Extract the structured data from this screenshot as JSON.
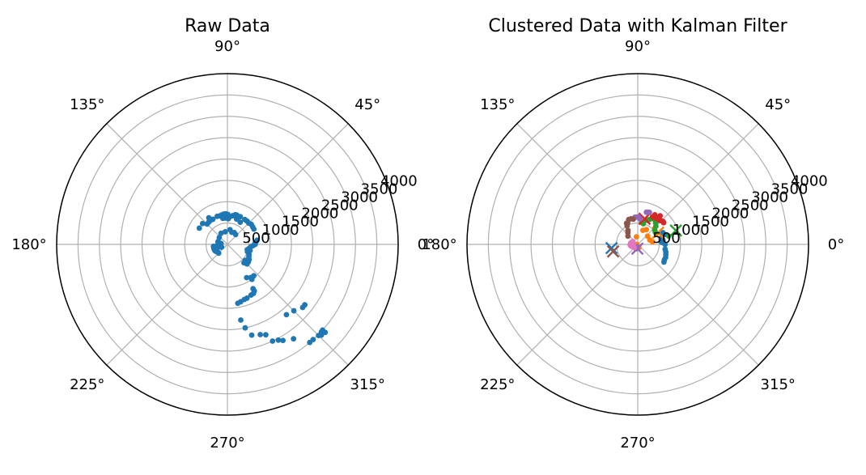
{
  "chart_data": [
    {
      "type": "scatter",
      "projection": "polar",
      "title": "Raw Data",
      "rlim": [
        0,
        4000
      ],
      "r_ticks": [
        500,
        1000,
        1500,
        2000,
        2500,
        3000,
        3500,
        4000
      ],
      "r_tick_labels": [
        "500",
        "1000",
        "1500",
        "2000",
        "2500",
        "3000",
        "3500",
        "4000"
      ],
      "angle_ticks_deg": [
        0,
        45,
        90,
        135,
        180,
        225,
        270,
        315
      ],
      "angle_tick_labels": [
        "0°",
        "45°",
        "90°",
        "135°",
        "180°",
        "225°",
        "270°",
        "315°"
      ],
      "grid": true,
      "series": [
        {
          "color": "#1f77b4",
          "points": [
            [
              95,
              620
            ],
            [
              100,
              620
            ],
            [
              100,
              645
            ],
            [
              85,
              650
            ],
            [
              88,
              600
            ],
            [
              89,
              700
            ],
            [
              91,
              705
            ],
            [
              93,
              717
            ],
            [
              95,
              715
            ],
            [
              98,
              712
            ],
            [
              102,
              700
            ],
            [
              105,
              690
            ],
            [
              110,
              700
            ],
            [
              120,
              680
            ],
            [
              125,
              690
            ],
            [
              130,
              680
            ],
            [
              135,
              674
            ],
            [
              125,
              760
            ],
            [
              140,
              760
            ],
            [
              150,
              760
            ],
            [
              70,
              630
            ],
            [
              72,
              720
            ],
            [
              74,
              720
            ],
            [
              76,
              700
            ],
            [
              78,
              690
            ],
            [
              80,
              680
            ],
            [
              75,
              720
            ],
            [
              60,
              600
            ],
            [
              65,
              715
            ],
            [
              55,
              710
            ],
            [
              50,
              713
            ],
            [
              45,
              706
            ],
            [
              40,
              730
            ],
            [
              35,
              720
            ],
            [
              30,
              715
            ],
            [
              70,
              300
            ],
            [
              60,
              320
            ],
            [
              50,
              300
            ],
            [
              80,
              350
            ],
            [
              100,
              300
            ],
            [
              120,
              300
            ],
            [
              140,
              250
            ],
            [
              172,
              150
            ],
            [
              175,
              175
            ],
            [
              178,
              180
            ],
            [
              180,
              200
            ],
            [
              182,
              220
            ],
            [
              185,
              240
            ],
            [
              188,
              250
            ],
            [
              190,
              240
            ],
            [
              192,
              220
            ],
            [
              195,
              210
            ],
            [
              197,
              200
            ],
            [
              199,
              180
            ],
            [
              201,
              170
            ],
            [
              203,
              160
            ],
            [
              205,
              150
            ],
            [
              168,
              200
            ],
            [
              164,
              230
            ],
            [
              188,
              330
            ],
            [
              195,
              330
            ],
            [
              200,
              330
            ],
            [
              205,
              330
            ],
            [
              210,
              320
            ],
            [
              215,
              300
            ],
            [
              220,
              290
            ],
            [
              225,
              290
            ],
            [
              340,
              500
            ],
            [
              345,
              550
            ],
            [
              330,
              580
            ],
            [
              325,
              620
            ],
            [
              320,
              640
            ],
            [
              315,
              650
            ],
            [
              312,
              580
            ],
            [
              318,
              560
            ],
            [
              322,
              600
            ],
            [
              335,
              560
            ],
            [
              338,
              530
            ],
            [
              342,
              510
            ],
            [
              345,
              480
            ],
            [
              350,
              520
            ],
            [
              355,
              560
            ],
            [
              357,
              600
            ],
            [
              0,
              650
            ],
            [
              3,
              650
            ],
            [
              5,
              670
            ],
            [
              8,
              700
            ],
            [
              300,
              900
            ],
            [
              305,
              950
            ],
            [
              310,
              960
            ],
            [
              305,
              1000
            ],
            [
              300,
              1200
            ],
            [
              298,
              1300
            ],
            [
              300,
              1260
            ],
            [
              295,
              1310
            ],
            [
              290,
              1340
            ],
            [
              287,
              1350
            ],
            [
              283,
              1380
            ],
            [
              280,
              1400
            ],
            [
              280,
              1800
            ],
            [
              282,
              2000
            ],
            [
              285,
              2200
            ],
            [
              290,
              2250
            ],
            [
              293,
              2300
            ],
            [
              295,
              2500
            ],
            [
              298,
              2540
            ],
            [
              300,
              2600
            ],
            [
              305,
              2700
            ],
            [
              310,
              3000
            ],
            [
              312,
              3000
            ],
            [
              315,
              3020
            ],
            [
              317,
              3010
            ],
            [
              318,
              3000
            ],
            [
              310,
              2150
            ],
            [
              315,
              2200
            ],
            [
              320,
              2300
            ],
            [
              322,
              2300
            ],
            [
              318,
              3080
            ],
            [
              316,
              3060
            ]
          ]
        }
      ]
    },
    {
      "type": "scatter",
      "projection": "polar",
      "title": "Clustered Data with Kalman Filter",
      "rlim": [
        0,
        4000
      ],
      "r_ticks": [
        500,
        1000,
        1500,
        2000,
        2500,
        3000,
        3500,
        4000
      ],
      "r_tick_labels": [
        "500",
        "1000",
        "1500",
        "2000",
        "2500",
        "3000",
        "3500",
        "4000"
      ],
      "angle_ticks_deg": [
        0,
        45,
        90,
        135,
        180,
        225,
        270,
        315
      ],
      "angle_tick_labels": [
        "0°",
        "45°",
        "90°",
        "135°",
        "180°",
        "225°",
        "270°",
        "315°"
      ],
      "grid": true,
      "series": [
        {
          "color": "#1f77b4",
          "points": [
            [
              25,
              650
            ],
            [
              20,
              670
            ],
            [
              10,
              600
            ],
            [
              0,
              640
            ],
            [
              350,
              650
            ],
            [
              345,
              680
            ],
            [
              340,
              700
            ],
            [
              335,
              720
            ],
            [
              330,
              720
            ],
            [
              326,
              740
            ],
            [
              5,
              560
            ],
            [
              15,
              580
            ]
          ],
          "kalman": [
            [
              188,
              620
            ]
          ]
        },
        {
          "color": "#ff7f0e",
          "points": [
            [
              70,
              350
            ],
            [
              60,
              400
            ],
            [
              40,
              300
            ],
            [
              20,
              300
            ],
            [
              10,
              350
            ],
            [
              180,
              20
            ],
            [
              200,
              50
            ],
            [
              290,
              80
            ],
            [
              250,
              100
            ],
            [
              100,
              180
            ],
            [
              30,
              500
            ]
          ],
          "kalman": [
            [
              30,
              550
            ]
          ]
        },
        {
          "color": "#2ca02c",
          "points": [
            [
              45,
              600
            ],
            [
              50,
              650
            ],
            [
              55,
              700
            ],
            [
              60,
              700
            ],
            [
              65,
              640
            ],
            [
              70,
              600
            ],
            [
              75,
              500
            ],
            [
              80,
              520
            ],
            [
              40,
              520
            ],
            [
              35,
              500
            ],
            [
              15,
              750
            ]
          ],
          "kalman": [
            [
              20,
              950
            ]
          ]
        },
        {
          "color": "#d62728",
          "points": [
            [
              48,
              760
            ],
            [
              45,
              780
            ],
            [
              42,
              800
            ],
            [
              40,
              790
            ],
            [
              50,
              790
            ],
            [
              53,
              800
            ],
            [
              55,
              750
            ],
            [
              58,
              740
            ],
            [
              62,
              730
            ],
            [
              60,
              800
            ],
            [
              52,
              850
            ]
          ],
          "kalman": [
            [
              75,
              620
            ]
          ]
        },
        {
          "color": "#9467bd",
          "points": [
            [
              70,
              800
            ],
            [
              72,
              790
            ],
            [
              75,
              780
            ],
            [
              85,
              600
            ],
            [
              88,
              640
            ],
            [
              92,
              640
            ],
            [
              96,
              640
            ],
            [
              260,
              60
            ],
            [
              255,
              90
            ],
            [
              250,
              110
            ]
          ],
          "kalman": [
            [
              265,
              100
            ]
          ]
        },
        {
          "color": "#8c564b",
          "points": [
            [
              100,
              600
            ],
            [
              105,
              620
            ],
            [
              110,
              620
            ],
            [
              115,
              560
            ],
            [
              118,
              560
            ],
            [
              120,
              500
            ],
            [
              125,
              400
            ],
            [
              130,
              360
            ],
            [
              140,
              300
            ]
          ],
          "kalman": [
            [
              196,
              600
            ]
          ]
        },
        {
          "color": "#e377c2",
          "points": [
            [
              150,
              130
            ],
            [
              160,
              150
            ],
            [
              170,
              170
            ],
            [
              180,
              160
            ],
            [
              190,
              150
            ],
            [
              200,
              130
            ],
            [
              210,
              120
            ],
            [
              220,
              110
            ],
            [
              170,
              120
            ],
            [
              185,
              180
            ],
            [
              195,
              160
            ]
          ],
          "kalman": []
        }
      ]
    }
  ]
}
